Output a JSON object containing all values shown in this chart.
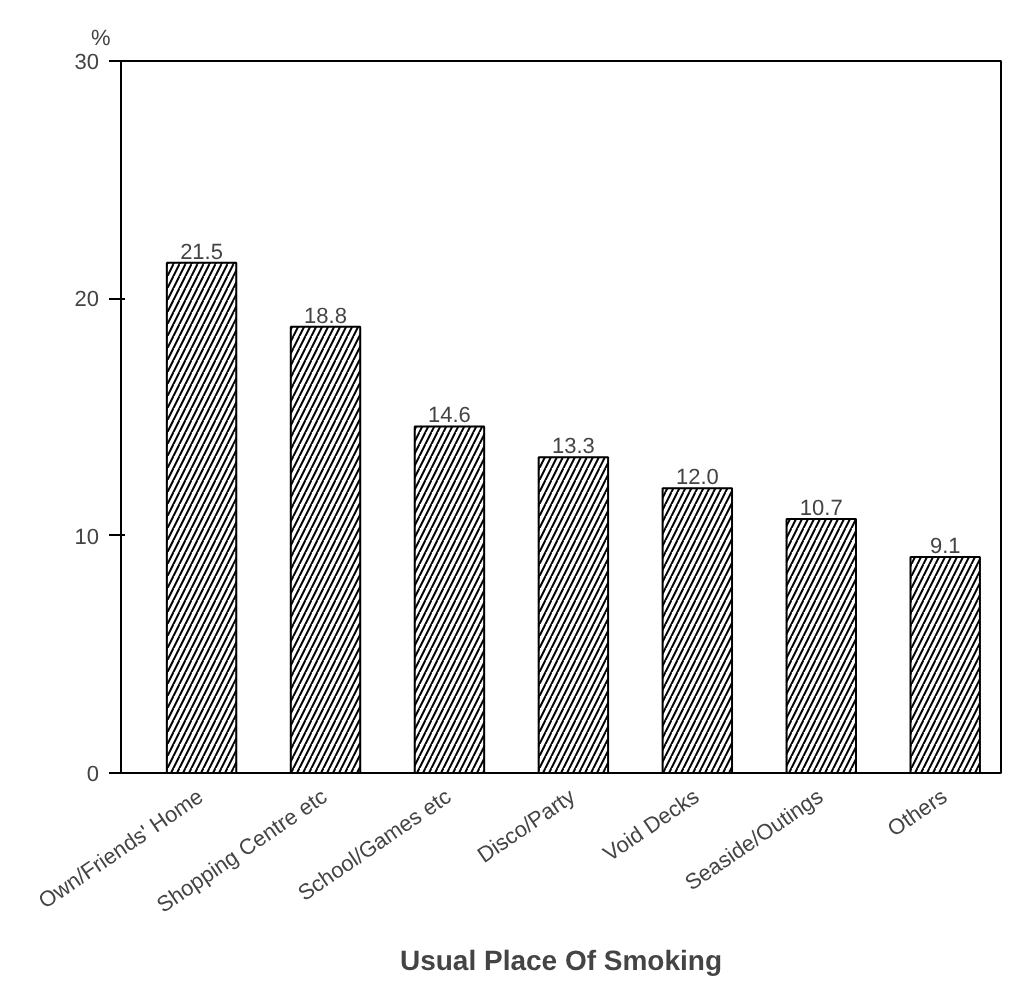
{
  "chart_data": {
    "type": "bar",
    "xlabel": "Usual Place Of Smoking",
    "ylabel": "%",
    "categories": [
      "Own/Friends' Home",
      "Shopping Centre etc",
      "School/Games etc",
      "Disco/Party",
      "Void Decks",
      "Seaside/Outings",
      "Others"
    ],
    "values": [
      21.5,
      18.8,
      14.6,
      13.3,
      12.0,
      10.7,
      9.1
    ],
    "value_labels": [
      "21.5",
      "18.8",
      "14.6",
      "13.3",
      "12.0",
      "10.7",
      "9.1"
    ],
    "color": "#ffffff",
    "ylim": [
      0,
      30
    ],
    "yticks": [
      0,
      10,
      20,
      30
    ],
    "grid": false
  }
}
